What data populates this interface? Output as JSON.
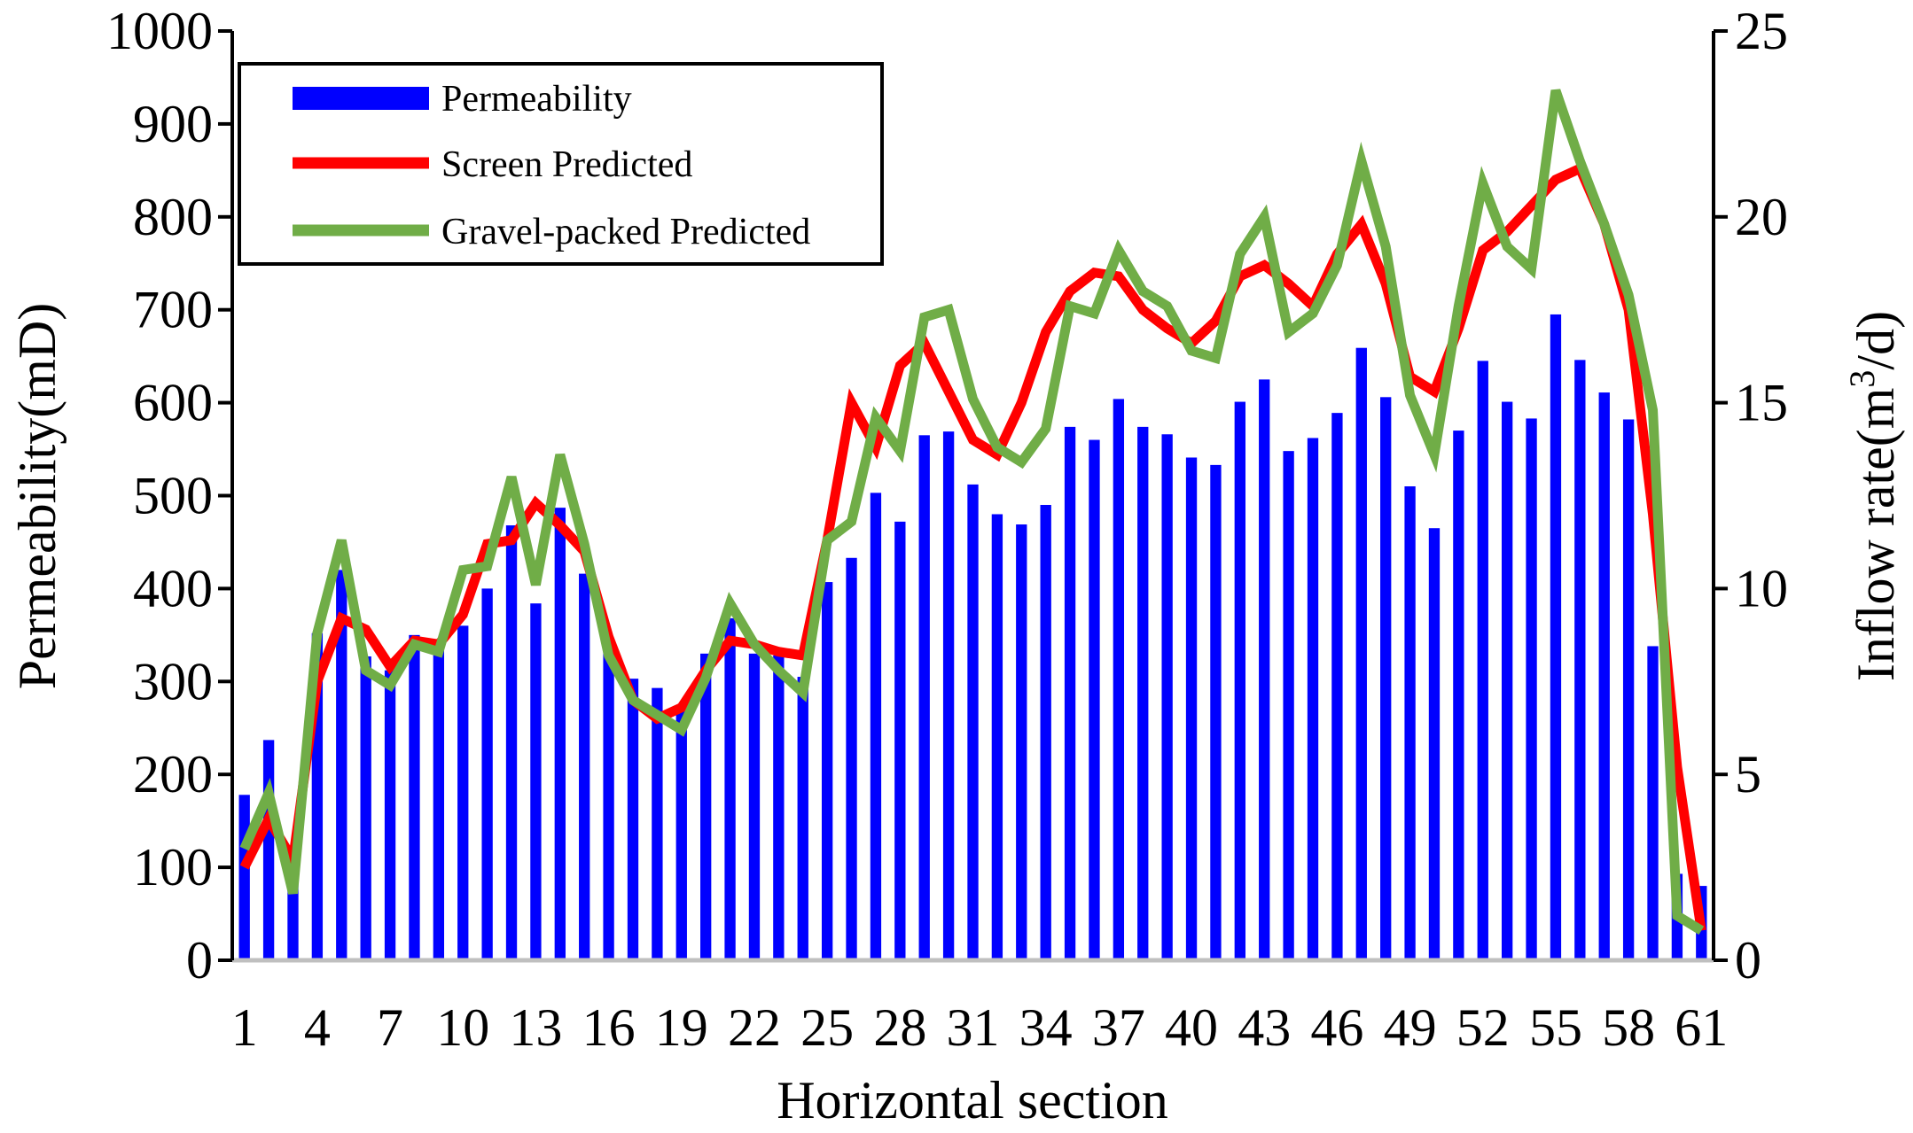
{
  "chart_data": {
    "type": "bar+line",
    "title": "",
    "xlabel": "Horizontal section",
    "ylabel_left": "Permeability(mD)",
    "ylabel_right_parts": {
      "pre": "Inflow rate(m",
      "sup": "3",
      "post": "/d)"
    },
    "ylim_left": [
      0,
      1000
    ],
    "ylim_right": [
      0,
      25
    ],
    "yticks_left": [
      "0",
      "100",
      "200",
      "300",
      "400",
      "500",
      "600",
      "700",
      "800",
      "900",
      "1000"
    ],
    "yticks_right": [
      "0",
      "5",
      "10",
      "15",
      "20",
      "25"
    ],
    "xticks": [
      "1",
      "4",
      "7",
      "10",
      "13",
      "16",
      "19",
      "22",
      "25",
      "28",
      "31",
      "34",
      "37",
      "40",
      "43",
      "46",
      "49",
      "52",
      "55",
      "58",
      "61"
    ],
    "legend_position": "top-left",
    "x": [
      1,
      2,
      3,
      4,
      5,
      6,
      7,
      8,
      9,
      10,
      11,
      12,
      13,
      14,
      15,
      16,
      17,
      18,
      19,
      20,
      21,
      22,
      23,
      24,
      25,
      26,
      27,
      28,
      29,
      30,
      31,
      32,
      33,
      34,
      35,
      36,
      37,
      38,
      39,
      40,
      41,
      42,
      43,
      44,
      45,
      46,
      47,
      48,
      49,
      50,
      51,
      52,
      53,
      54,
      55,
      56,
      57,
      58,
      59,
      60,
      61
    ],
    "series": [
      {
        "name": "Permeability",
        "kind": "bar",
        "axis": "left",
        "color": "#0000ff",
        "values": [
          178,
          237,
          110,
          352,
          420,
          327,
          312,
          350,
          340,
          360,
          400,
          468,
          384,
          487,
          416,
          335,
          303,
          293,
          275,
          330,
          368,
          330,
          328,
          305,
          407,
          433,
          503,
          472,
          565,
          569,
          512,
          480,
          469,
          490,
          574,
          560,
          604,
          574,
          566,
          541,
          533,
          601,
          625,
          548,
          562,
          589,
          659,
          606,
          510,
          465,
          570,
          645,
          601,
          583,
          695,
          646,
          611,
          582,
          338,
          93,
          80
        ]
      },
      {
        "name": "Screen Predicted",
        "kind": "line",
        "axis": "right",
        "color": "#ff0000",
        "values": [
          2.5,
          3.8,
          2.7,
          7.5,
          9.2,
          8.9,
          7.9,
          8.6,
          8.5,
          9.3,
          11.2,
          11.3,
          12.3,
          11.7,
          11.0,
          8.7,
          7.0,
          6.5,
          6.8,
          7.8,
          8.6,
          8.5,
          8.3,
          8.2,
          11.3,
          15.0,
          13.8,
          16.0,
          16.6,
          15.3,
          14.0,
          13.6,
          15.0,
          16.9,
          18.0,
          18.5,
          18.4,
          17.5,
          17.0,
          16.6,
          17.2,
          18.4,
          18.7,
          18.2,
          17.6,
          19.0,
          19.8,
          18.2,
          15.7,
          15.3,
          17.0,
          19.1,
          19.6,
          20.3,
          21.0,
          21.3,
          19.8,
          17.5,
          12.0,
          5.2,
          0.8
        ]
      },
      {
        "name": "Gravel-packed Predicted",
        "kind": "line",
        "axis": "right",
        "color": "#70ad47",
        "values": [
          3.0,
          4.5,
          1.8,
          8.8,
          11.3,
          7.8,
          7.4,
          8.5,
          8.3,
          10.5,
          10.6,
          13.0,
          10.1,
          13.6,
          11.2,
          8.2,
          7.0,
          6.6,
          6.2,
          7.6,
          9.6,
          8.5,
          7.8,
          7.2,
          11.3,
          11.8,
          14.6,
          13.7,
          17.3,
          17.5,
          15.1,
          13.8,
          13.4,
          14.3,
          17.6,
          17.4,
          19.1,
          18.0,
          17.6,
          16.4,
          16.2,
          19.0,
          20.0,
          16.9,
          17.4,
          18.7,
          21.5,
          19.2,
          15.2,
          13.6,
          17.6,
          20.9,
          19.2,
          18.6,
          23.4,
          21.5,
          19.8,
          17.9,
          14.8,
          1.2,
          0.8
        ]
      }
    ]
  }
}
